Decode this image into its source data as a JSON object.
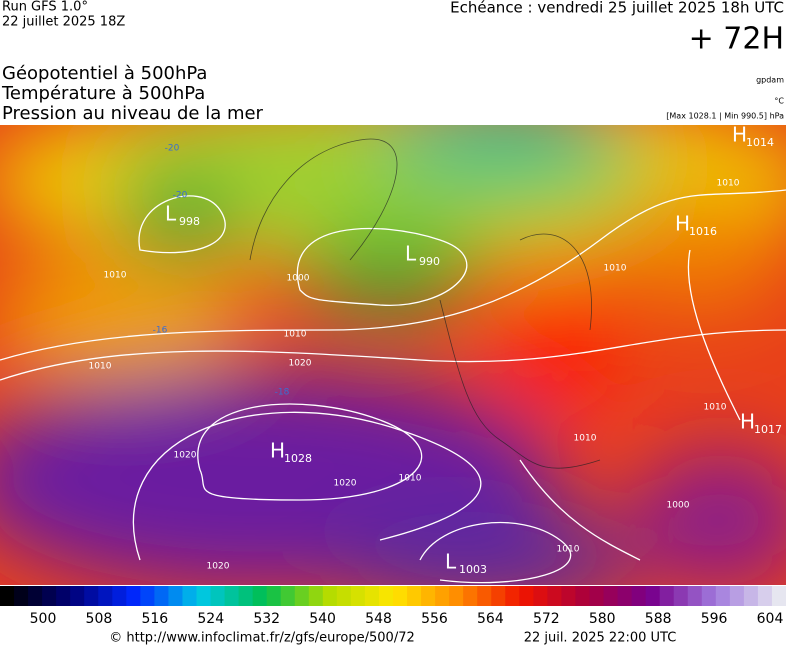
{
  "header": {
    "run": "Run GFS 1.0°",
    "run_date": "22 juillet 2025 18Z",
    "valid": "Echéance : vendredi 25 juillet 2025 18h UTC",
    "lead": "+ 72H"
  },
  "titles": [
    "Géopotentiel à 500hPa",
    "Température à 500hPa",
    "Pression au niveau de la mer"
  ],
  "units": [
    "gpdam",
    "°C",
    "[Max 1028.1 | Min 990.5] hPa"
  ],
  "centers": [
    {
      "kind": "H",
      "value": "1014"
    },
    {
      "kind": "H",
      "value": "1016"
    },
    {
      "kind": "L",
      "value": "990"
    },
    {
      "kind": "L",
      "value": "998"
    },
    {
      "kind": "H",
      "value": "1028"
    },
    {
      "kind": "H",
      "value": "1017"
    },
    {
      "kind": "L",
      "value": "1003"
    }
  ],
  "isobar_labels": [
    "1010",
    "1020",
    "1010",
    "1020",
    "1020",
    "1020",
    "1010",
    "1010",
    "1010",
    "1010",
    "1010",
    "1000",
    "1010",
    "1010",
    "1000"
  ],
  "temp_labels": [
    "-20",
    "-20",
    "-18",
    "-16"
  ],
  "colorbar": {
    "labels": [
      "500",
      "508",
      "516",
      "524",
      "532",
      "540",
      "548",
      "556",
      "564",
      "572",
      "580",
      "588",
      "596",
      "604"
    ]
  },
  "footer": {
    "url": "© http://www.infoclimat.fr/z/gfs/europe/500/72",
    "date": "22 juil. 2025 22:00 UTC"
  }
}
